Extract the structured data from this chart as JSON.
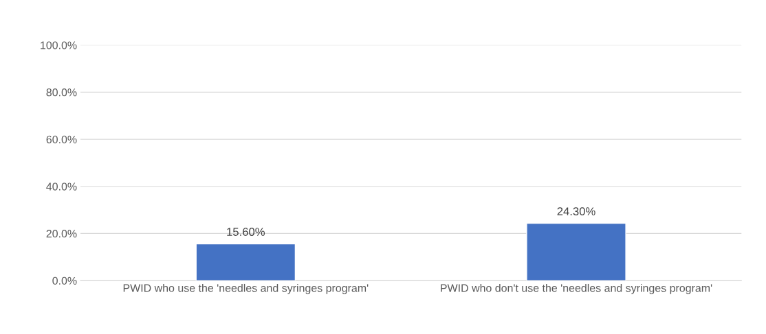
{
  "chart_data": {
    "type": "bar",
    "categories": [
      "PWID who use the 'needles and syringes program'",
      "PWID who don't use the 'needles and syringes program'"
    ],
    "values": [
      15.6,
      24.3
    ],
    "color": "#4472c4",
    "value_labels": [
      "15.60%",
      "24.30%"
    ],
    "ylim": [
      0,
      100
    ],
    "yticks": [
      {
        "value": 0,
        "label": "0.0%"
      },
      {
        "value": 20,
        "label": "20.0%"
      },
      {
        "value": 40,
        "label": "40.0%"
      },
      {
        "value": 60,
        "label": "60.0%"
      },
      {
        "value": 80,
        "label": "80.0%"
      },
      {
        "value": 100,
        "label": "100.0%"
      }
    ],
    "grid": "y",
    "legend": false
  }
}
